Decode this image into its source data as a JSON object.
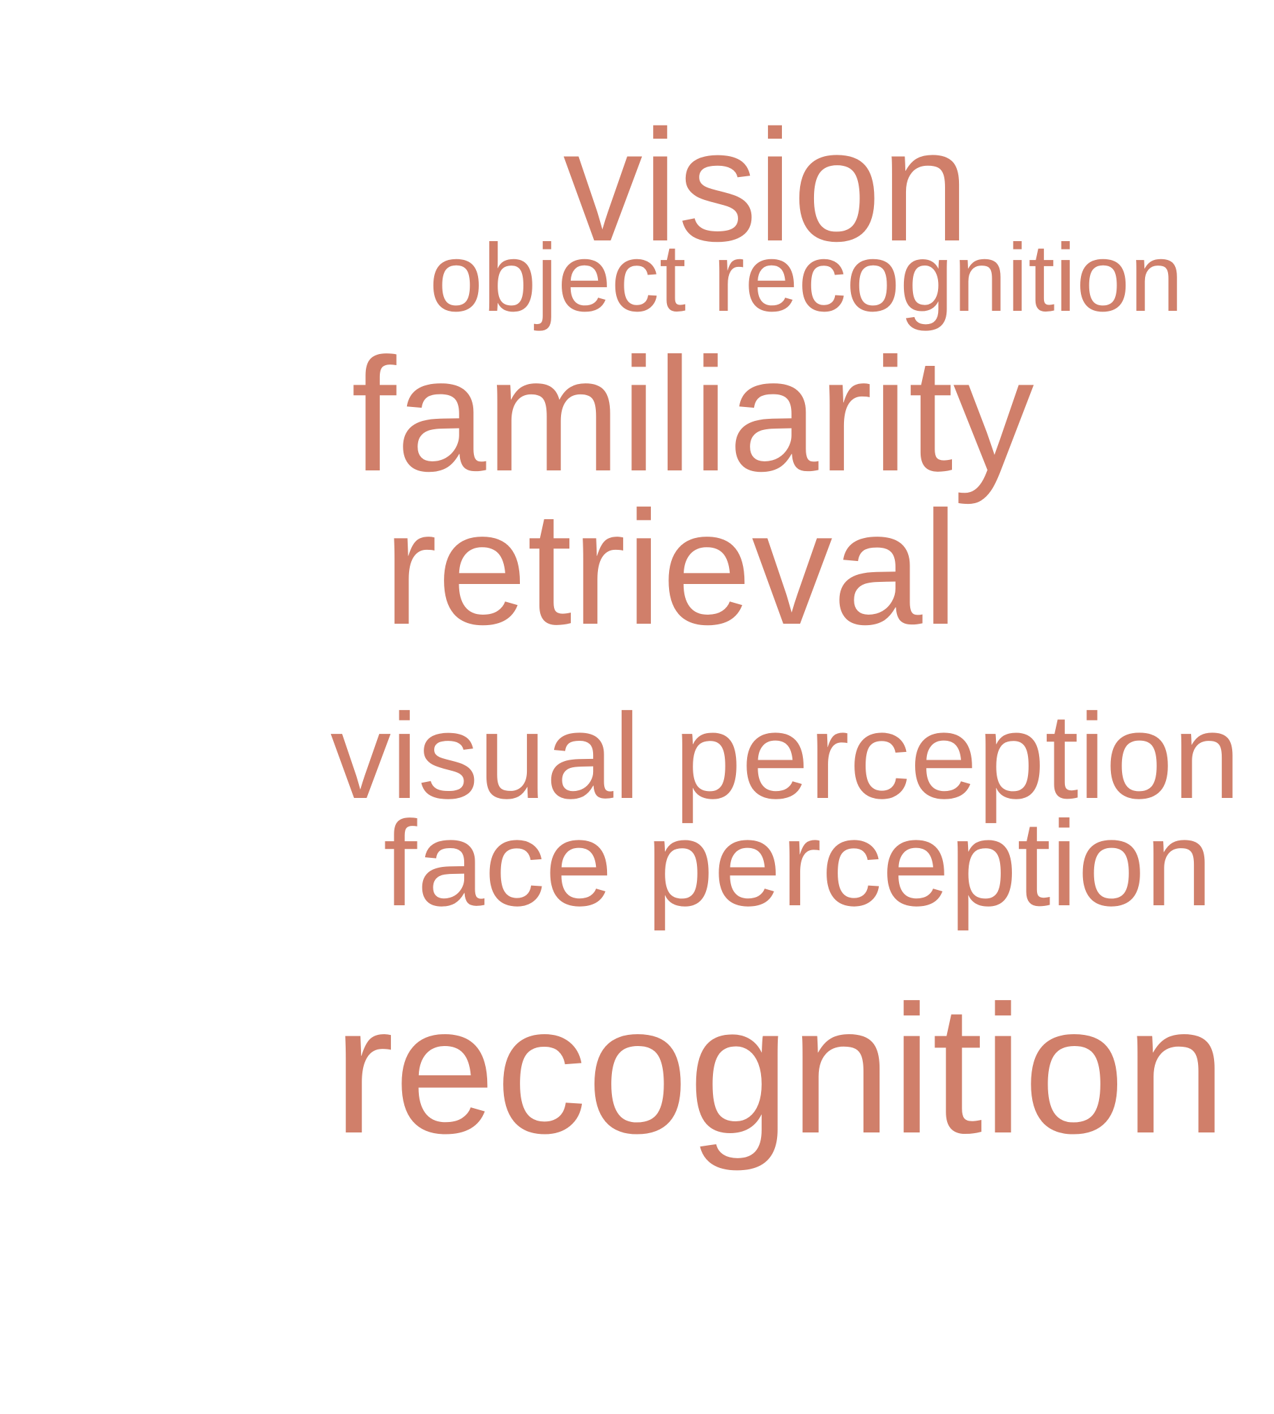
{
  "word_cloud": {
    "color": "#d07f6a",
    "words": {
      "vision": "vision",
      "object_recognition": "object recognition",
      "familiarity": "familiarity",
      "retrieval": "retrieval",
      "visual_perception": "visual perception",
      "face_perception": "face perception",
      "recognition": "recognition"
    }
  }
}
